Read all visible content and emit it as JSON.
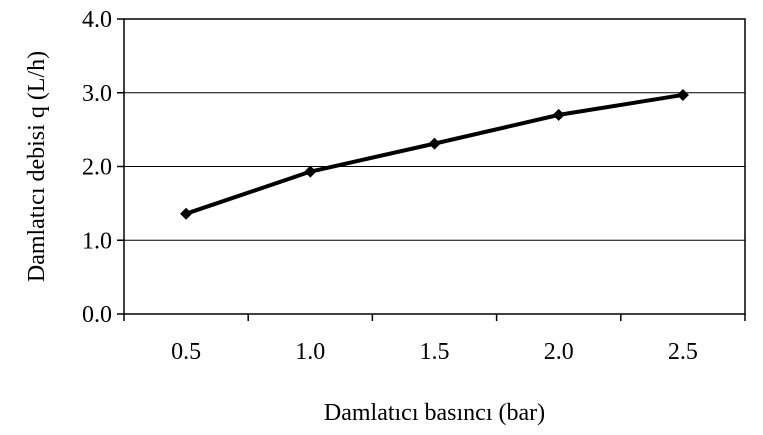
{
  "chart_data": {
    "type": "line",
    "xlabel": "Damlatıcı basıncı (bar)",
    "ylabel": "Damlatıcı debisi q (L/h)",
    "categories": [
      "0.5",
      "1.0",
      "1.5",
      "2.0",
      "2.5"
    ],
    "series": [
      {
        "values": [
          1.36,
          1.93,
          2.31,
          2.7,
          2.97
        ]
      }
    ],
    "ylim": [
      0,
      4.0
    ],
    "yticks": [
      "0.0",
      "1.0",
      "2.0",
      "3.0",
      "4.0"
    ],
    "grid": "horizontal",
    "legend": "none",
    "line_color": "#000000",
    "marker": "diamond"
  }
}
